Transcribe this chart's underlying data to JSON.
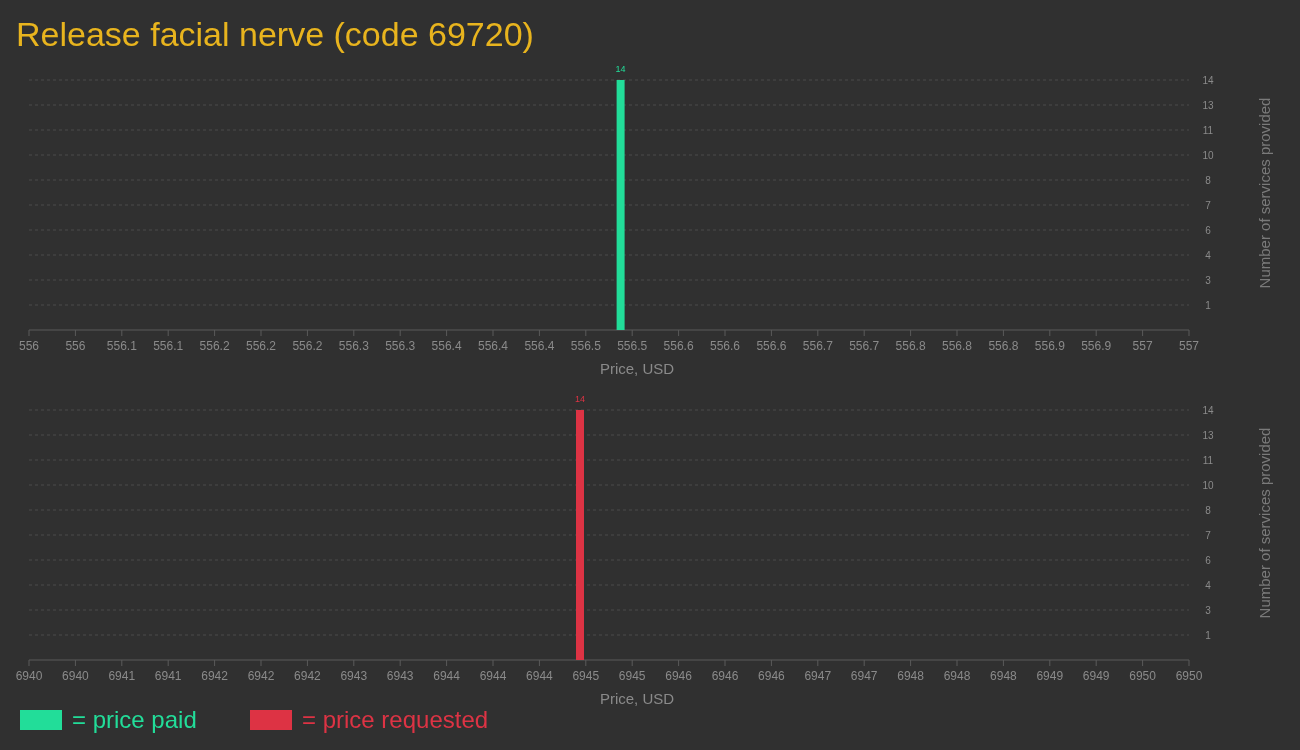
{
  "chart_data": [
    {
      "type": "bar",
      "title": "Release facial nerve (code 69720)",
      "xlabel": "Price, USD",
      "ylabel": "Number of services provided",
      "x": [
        556.51
      ],
      "series": [
        {
          "name": "= price paid",
          "color": "#22dd99",
          "values": [
            14
          ]
        }
      ],
      "xlim": [
        556,
        557
      ],
      "xticks": [
        {
          "value": 556,
          "label": "556"
        },
        {
          "value": 556.04,
          "label": "556"
        },
        {
          "value": 556.08,
          "label": "556.1"
        },
        {
          "value": 556.12,
          "label": "556.1"
        },
        {
          "value": 556.16,
          "label": "556.2"
        },
        {
          "value": 556.2,
          "label": "556.2"
        },
        {
          "value": 556.24,
          "label": "556.2"
        },
        {
          "value": 556.28,
          "label": "556.3"
        },
        {
          "value": 556.32,
          "label": "556.3"
        },
        {
          "value": 556.36,
          "label": "556.4"
        },
        {
          "value": 556.4,
          "label": "556.4"
        },
        {
          "value": 556.44,
          "label": "556.4"
        },
        {
          "value": 556.48,
          "label": "556.5"
        },
        {
          "value": 556.52,
          "label": "556.5"
        },
        {
          "value": 556.56,
          "label": "556.6"
        },
        {
          "value": 556.6,
          "label": "556.6"
        },
        {
          "value": 556.64,
          "label": "556.6"
        },
        {
          "value": 556.68,
          "label": "556.7"
        },
        {
          "value": 556.72,
          "label": "556.7"
        },
        {
          "value": 556.76,
          "label": "556.8"
        },
        {
          "value": 556.8,
          "label": "556.8"
        },
        {
          "value": 556.84,
          "label": "556.8"
        },
        {
          "value": 556.88,
          "label": "556.9"
        },
        {
          "value": 556.92,
          "label": "556.9"
        },
        {
          "value": 556.96,
          "label": "557"
        },
        {
          "value": 557,
          "label": "557"
        }
      ],
      "ylim": [
        0,
        14
      ],
      "yticks": [
        {
          "value": 1.4,
          "label": "1"
        },
        {
          "value": 2.8,
          "label": "3"
        },
        {
          "value": 4.2,
          "label": "4"
        },
        {
          "value": 5.6,
          "label": "6"
        },
        {
          "value": 7,
          "label": "7"
        },
        {
          "value": 8.4,
          "label": "8"
        },
        {
          "value": 9.8,
          "label": "10"
        },
        {
          "value": 11.2,
          "label": "11"
        },
        {
          "value": 12.6,
          "label": "13"
        },
        {
          "value": 14,
          "label": "14"
        }
      ],
      "grid": "y",
      "data_labels": true,
      "legend": "bottom"
    },
    {
      "type": "bar",
      "xlabel": "Price, USD",
      "ylabel": "Number of services provided",
      "x": [
        6944.75
      ],
      "series": [
        {
          "name": "= price requested",
          "color": "#dd3344",
          "values": [
            14
          ]
        }
      ],
      "xlim": [
        6940,
        6950
      ],
      "xticks": [
        {
          "value": 6940,
          "label": "6940"
        },
        {
          "value": 6940.4,
          "label": "6940"
        },
        {
          "value": 6940.8,
          "label": "6941"
        },
        {
          "value": 6941.2,
          "label": "6941"
        },
        {
          "value": 6941.6,
          "label": "6942"
        },
        {
          "value": 6942,
          "label": "6942"
        },
        {
          "value": 6942.4,
          "label": "6942"
        },
        {
          "value": 6942.8,
          "label": "6943"
        },
        {
          "value": 6943.2,
          "label": "6943"
        },
        {
          "value": 6943.6,
          "label": "6944"
        },
        {
          "value": 6944,
          "label": "6944"
        },
        {
          "value": 6944.4,
          "label": "6944"
        },
        {
          "value": 6944.8,
          "label": "6945"
        },
        {
          "value": 6945.2,
          "label": "6945"
        },
        {
          "value": 6945.6,
          "label": "6946"
        },
        {
          "value": 6946,
          "label": "6946"
        },
        {
          "value": 6946.4,
          "label": "6946"
        },
        {
          "value": 6946.8,
          "label": "6947"
        },
        {
          "value": 6947.2,
          "label": "6947"
        },
        {
          "value": 6947.6,
          "label": "6948"
        },
        {
          "value": 6948,
          "label": "6948"
        },
        {
          "value": 6948.4,
          "label": "6948"
        },
        {
          "value": 6948.8,
          "label": "6949"
        },
        {
          "value": 6949.2,
          "label": "6949"
        },
        {
          "value": 6949.6,
          "label": "6950"
        },
        {
          "value": 6950,
          "label": "6950"
        }
      ],
      "ylim": [
        0,
        14
      ],
      "yticks": [
        {
          "value": 1.4,
          "label": "1"
        },
        {
          "value": 2.8,
          "label": "3"
        },
        {
          "value": 4.2,
          "label": "4"
        },
        {
          "value": 5.6,
          "label": "6"
        },
        {
          "value": 7,
          "label": "7"
        },
        {
          "value": 8.4,
          "label": "8"
        },
        {
          "value": 9.8,
          "label": "10"
        },
        {
          "value": 11.2,
          "label": "11"
        },
        {
          "value": 12.6,
          "label": "13"
        },
        {
          "value": 14,
          "label": "14"
        }
      ],
      "grid": "y",
      "data_labels": true,
      "legend": "bottom"
    }
  ]
}
